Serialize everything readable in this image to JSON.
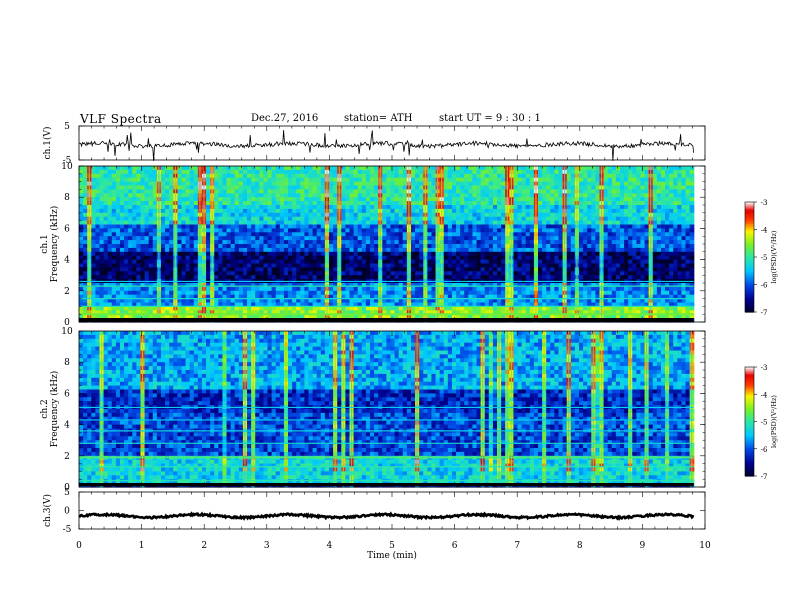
{
  "header": {
    "title": "VLF  Spectra",
    "date": "Dec.27, 2016",
    "station": "station= ATH",
    "start": "start  UT  =    9  : 30 : 1"
  },
  "chart_data": [
    {
      "type": "line",
      "panel": "ch1-waveform",
      "ylabel": "ch.1(V)",
      "yticks": [
        "5",
        "-5"
      ],
      "ylim": [
        -5,
        5
      ],
      "description_values": {
        "baseline": -0.5,
        "noise_amplitude": 1.2
      }
    },
    {
      "type": "heatmap",
      "panel": "ch1-spectrogram",
      "ylabel": "ch.1\nFrequency  (kHz)",
      "ylabel_line1": "ch.1",
      "ylabel_line2": "Frequency  (kHz)",
      "yticks": [
        "0",
        "2",
        "4",
        "6",
        "8",
        "10"
      ],
      "ylim": [
        0,
        10
      ],
      "colorbar": {
        "label": "log(PSD)(V²/Hz)",
        "ticks": [
          "-3",
          "-4",
          "-5",
          "-6",
          "-7"
        ],
        "range": [
          -7,
          -3
        ]
      }
    },
    {
      "type": "heatmap",
      "panel": "ch2-spectrogram",
      "ylabel_line1": "ch.2",
      "ylabel_line2": "Frequency  (kHz)",
      "yticks": [
        "0",
        "2",
        "4",
        "6",
        "8",
        "10"
      ],
      "ylim": [
        0,
        10
      ],
      "colorbar": {
        "label": "log(PSD)(V²/Hz)",
        "ticks": [
          "-3",
          "-4",
          "-5",
          "-6",
          "-7"
        ],
        "range": [
          -7,
          -3
        ]
      }
    },
    {
      "type": "line",
      "panel": "ch3-waveform",
      "ylabel": "ch.3(V)",
      "yticks": [
        "5",
        "0",
        "-5"
      ],
      "ylim": [
        -5,
        5
      ],
      "description_values": {
        "baseline": -1.5
      }
    }
  ],
  "xaxis": {
    "label": "Time  (min)",
    "ticks": [
      "0",
      "1",
      "2",
      "3",
      "4",
      "5",
      "6",
      "7",
      "8",
      "9",
      "10"
    ],
    "xlim": [
      0,
      10
    ],
    "data_end": 9.82
  }
}
